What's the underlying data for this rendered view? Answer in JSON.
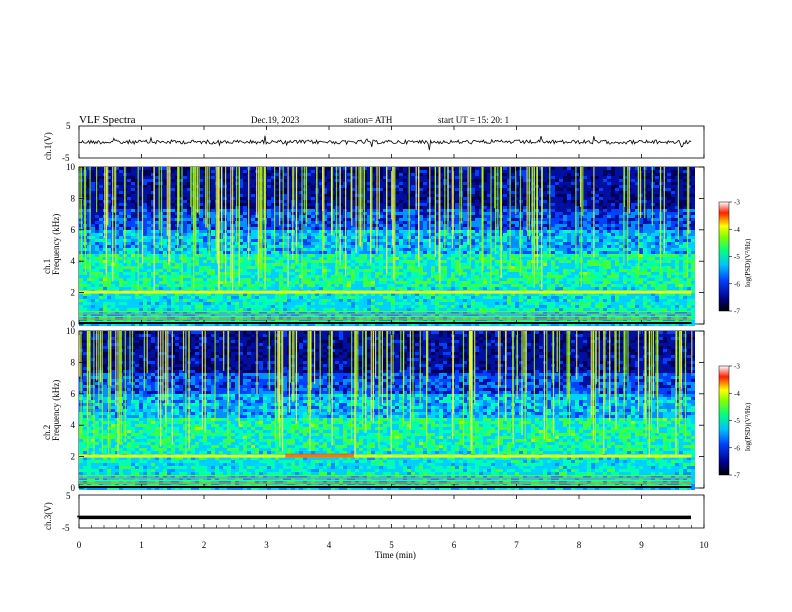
{
  "header": {
    "title": "VLF  Spectra",
    "date": "Dec.19, 2023",
    "station": "station= ATH",
    "start": "start  UT  =    15: 20: 1"
  },
  "chart_data": [
    {
      "type": "line",
      "name": "ch1-waveform",
      "ylabel": "ch.1(V)",
      "ylim": [
        -5,
        5
      ],
      "yticks": [
        "5",
        "-5"
      ],
      "x_range_min": [
        0,
        9.8
      ],
      "baseline_v": 0.0
    },
    {
      "type": "heatmap",
      "name": "ch1-spectrogram",
      "ylabel": "Frequency (kHz)",
      "channel": "ch.1",
      "ylim": [
        0,
        10
      ],
      "yticks": [
        "0",
        "2",
        "4",
        "6",
        "8",
        "10"
      ],
      "xlim": [
        0,
        10
      ],
      "data_end_min": 9.8,
      "colorbar": {
        "label": "log(PSD)(V²/Hz)",
        "min": -7,
        "max": -3,
        "ticks": [
          "-3",
          "-4",
          "-5",
          "-6",
          "-7"
        ]
      }
    },
    {
      "type": "heatmap",
      "name": "ch2-spectrogram",
      "ylabel": "Frequency (kHz)",
      "channel": "ch.2",
      "ylim": [
        0,
        10
      ],
      "yticks": [
        "0",
        "2",
        "4",
        "6",
        "8",
        "10"
      ],
      "xlim": [
        0,
        10
      ],
      "data_end_min": 9.8,
      "colorbar": {
        "label": "log(PSD)(V²/Hz)",
        "min": -7,
        "max": -3,
        "ticks": [
          "-3",
          "-4",
          "-5",
          "-6",
          "-7"
        ]
      }
    },
    {
      "type": "line",
      "name": "ch3-waveform",
      "ylabel": "ch.3(V)",
      "ylim": [
        -5,
        5
      ],
      "yticks": [
        "5",
        "-5"
      ],
      "x_range_min": [
        0,
        9.8
      ],
      "baseline_v": -1.8
    }
  ],
  "xaxis": {
    "label": "Time  (min)",
    "ticks": [
      "0",
      "1",
      "2",
      "3",
      "4",
      "5",
      "6",
      "7",
      "8",
      "9",
      "10"
    ]
  }
}
